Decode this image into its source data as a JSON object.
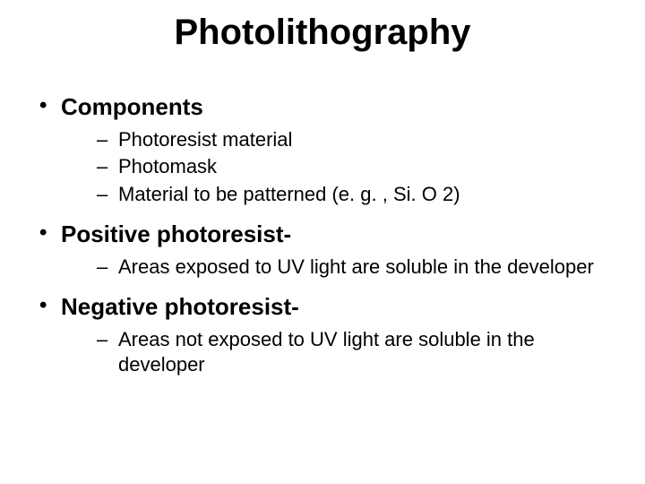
{
  "title": "Photolithography",
  "bullets": [
    {
      "label": "Components",
      "sub": [
        "Photoresist material",
        "Photomask",
        "Material to be patterned (e. g. , Si. O 2)"
      ]
    },
    {
      "label": "Positive photoresist-",
      "sub": [
        "Areas exposed to UV light are soluble in the developer"
      ]
    },
    {
      "label": "Negative photoresist-",
      "sub": [
        "Areas not exposed to UV light are soluble in the developer"
      ]
    }
  ]
}
